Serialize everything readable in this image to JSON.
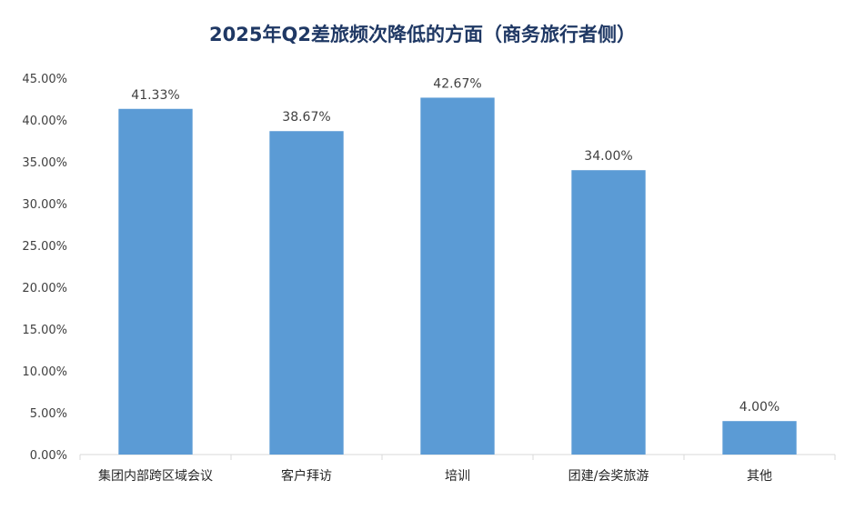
{
  "chart_data": {
    "type": "bar",
    "title": "2025年Q2差旅频次降低的方面（商务旅行者侧）",
    "categories": [
      "集团内部跨区域会议",
      "客户拜访",
      "培训",
      "团建/会奖旅游",
      "其他"
    ],
    "values": [
      41.33,
      38.67,
      42.67,
      34.0,
      4.0
    ],
    "data_labels": [
      "41.33%",
      "38.67%",
      "42.67%",
      "34.00%",
      "4.00%"
    ],
    "ylim": [
      0,
      45
    ],
    "yticks": [
      0,
      5,
      10,
      15,
      20,
      25,
      30,
      35,
      40,
      45
    ],
    "ytick_labels": [
      "0.00%",
      "5.00%",
      "10.00%",
      "15.00%",
      "20.00%",
      "25.00%",
      "30.00%",
      "35.00%",
      "40.00%",
      "45.00%"
    ],
    "xlabel": "",
    "ylabel": "",
    "grid": false,
    "legend": "none",
    "bar_color": "#5b9bd5",
    "title_color": "#1f3864"
  }
}
